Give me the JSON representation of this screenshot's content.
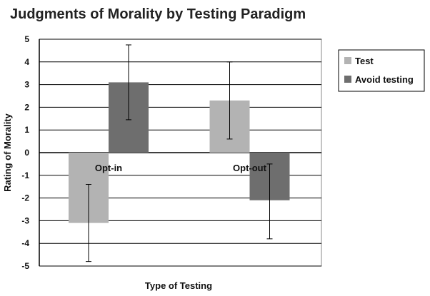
{
  "chart_data": {
    "type": "bar",
    "title": "Judgments of Morality by Testing Paradigm",
    "xlabel": "Type of Testing",
    "ylabel": "Rating of Morality",
    "ylim": [
      -5,
      5
    ],
    "yticks": [
      5,
      4,
      3,
      2,
      1,
      0,
      -1,
      -2,
      -3,
      -4,
      -5
    ],
    "categories": [
      "Opt-in",
      "Opt-out"
    ],
    "series": [
      {
        "name": "Test",
        "values": [
          -3.1,
          2.3
        ],
        "error_low": [
          -4.8,
          0.6
        ],
        "error_high": [
          -1.4,
          4.0
        ],
        "color": "#b3b3b3"
      },
      {
        "name": "Avoid testing",
        "values": [
          3.1,
          -2.1
        ],
        "error_low": [
          1.45,
          -3.8
        ],
        "error_high": [
          4.75,
          -0.5
        ],
        "color": "#6e6e6e"
      }
    ],
    "grid": true,
    "legend_position": "right"
  }
}
